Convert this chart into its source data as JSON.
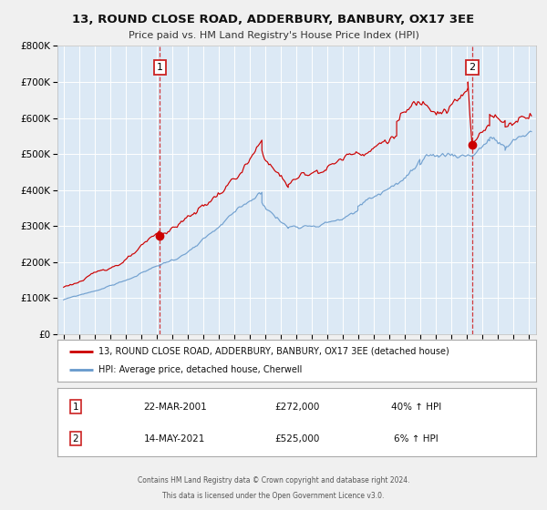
{
  "title": "13, ROUND CLOSE ROAD, ADDERBURY, BANBURY, OX17 3EE",
  "subtitle": "Price paid vs. HM Land Registry's House Price Index (HPI)",
  "red_label": "13, ROUND CLOSE ROAD, ADDERBURY, BANBURY, OX17 3EE (detached house)",
  "blue_label": "HPI: Average price, detached house, Cherwell",
  "annotation1_date": "22-MAR-2001",
  "annotation1_price": "£272,000",
  "annotation1_pct": "40% ↑ HPI",
  "annotation2_date": "14-MAY-2021",
  "annotation2_price": "£525,000",
  "annotation2_pct": "6% ↑ HPI",
  "footer1": "Contains HM Land Registry data © Crown copyright and database right 2024.",
  "footer2": "This data is licensed under the Open Government Licence v3.0.",
  "red_color": "#cc0000",
  "blue_color": "#6699cc",
  "bg_color": "#dce9f5",
  "grid_color": "#ffffff",
  "fig_bg": "#f0f0f0",
  "anno1_x": 2001.22,
  "anno1_y": 272000,
  "anno2_x": 2021.37,
  "anno2_y": 525000,
  "ylim": [
    0,
    800000
  ],
  "xlim_start": 1994.6,
  "xlim_end": 2025.5
}
